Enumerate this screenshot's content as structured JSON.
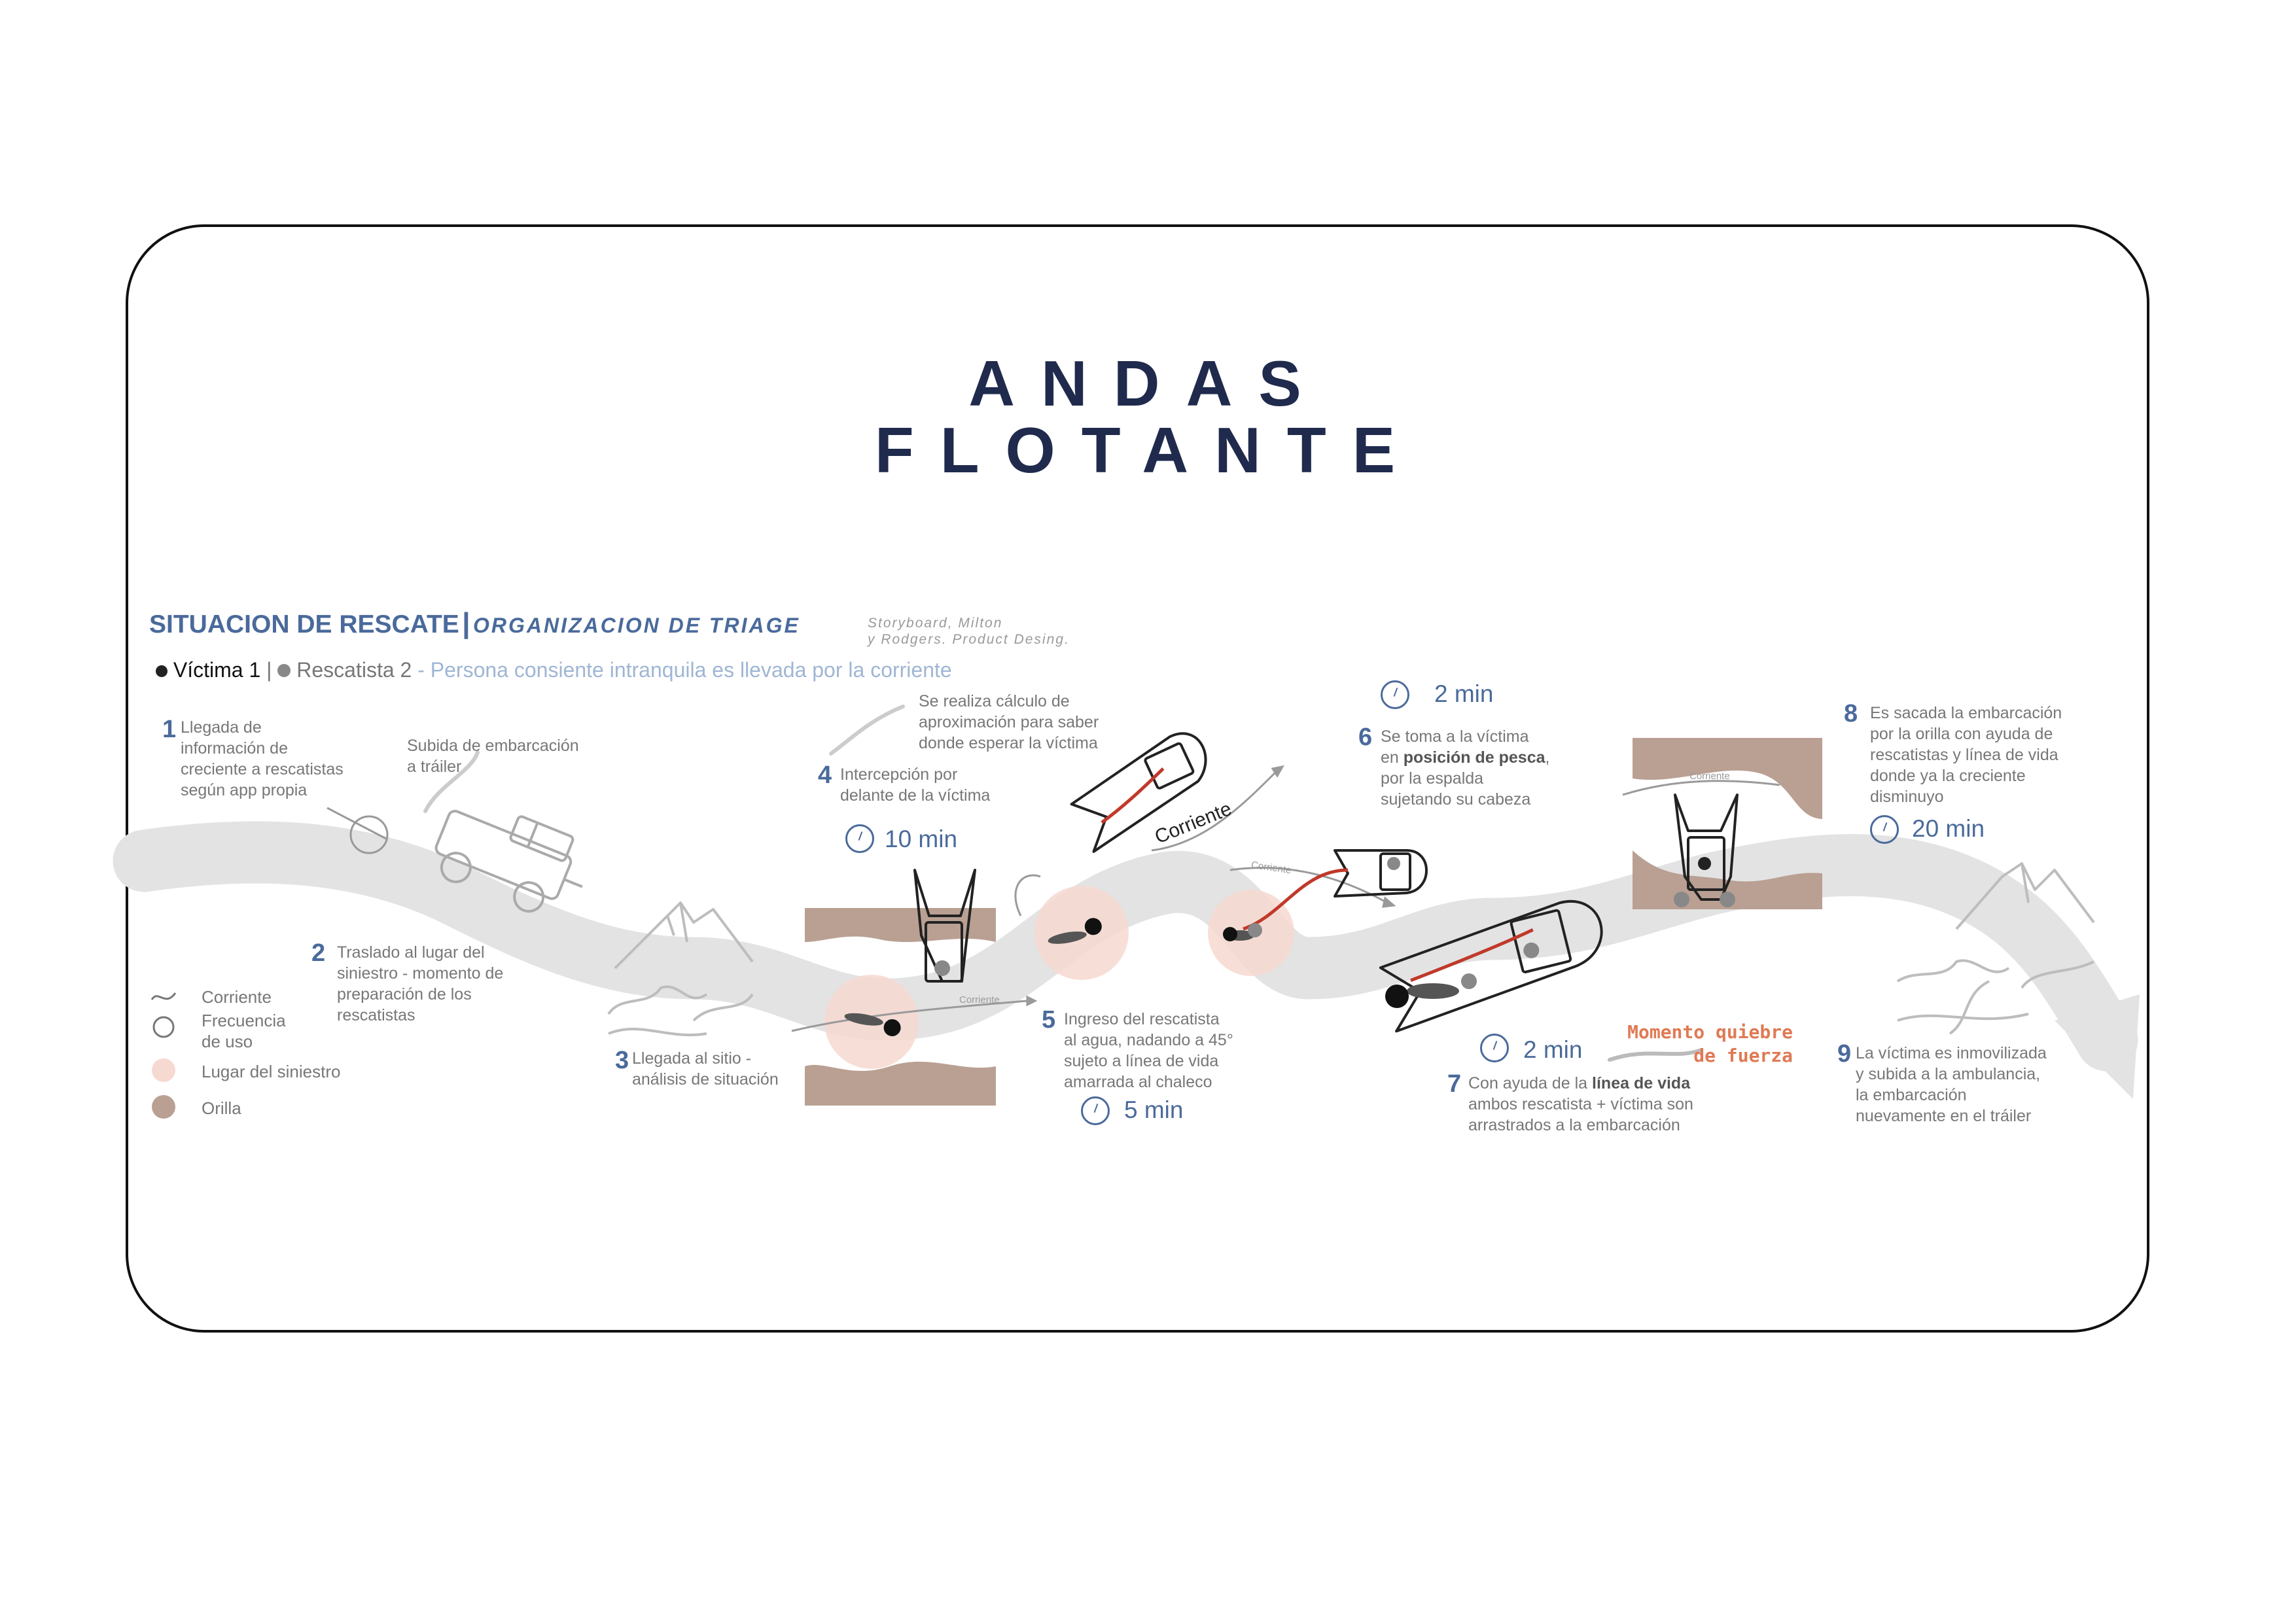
{
  "title": {
    "line1": "ANDAS",
    "line2": "FLOTANTE"
  },
  "header": {
    "main": "SITUACION DE RESCATE",
    "separator": "|",
    "sub": "ORGANIZACION DE TRIAGE",
    "credit_line1": "Storyboard, Milton",
    "credit_line2": "y Rodgers. Product Desing."
  },
  "actors": {
    "victim": "Víctima 1",
    "sep": "|",
    "rescuer": "Rescatista 2",
    "description": "- Persona consiente intranquila es llevada por la corriente"
  },
  "legend": {
    "current": "Corriente",
    "frequency_line1": "Frecuencia",
    "frequency_line2": "de uso",
    "site": "Lugar del siniestro",
    "shore": "Orilla"
  },
  "steps": [
    {
      "n": "1",
      "lines": [
        "Llegada de",
        "información de",
        "creciente a rescatistas",
        "según app propia"
      ]
    },
    {
      "n": "2",
      "lines": [
        "Traslado al lugar del",
        "siniestro - momento de",
        "preparación de los",
        "rescatistas"
      ]
    },
    {
      "n": "3",
      "lines": [
        "Llegada al sitio -",
        "análisis de situación"
      ]
    },
    {
      "n": "4",
      "lines": [
        "Intercepción por",
        "delante de la víctima"
      ]
    },
    {
      "n": "5",
      "lines": [
        "Ingreso del rescatista",
        "al agua, nadando a 45°",
        "sujeto a línea de vida",
        "amarrada al chaleco"
      ]
    },
    {
      "n": "6",
      "lines": [
        "Se toma a la víctima",
        "en ",
        "posición de pesca",
        ",",
        "por la espalda",
        "sujetando su cabeza"
      ]
    },
    {
      "n": "7",
      "lines": [
        "Con ayuda de la ",
        "línea de vida",
        "ambos rescatista + víctima son",
        "arrastrados a la embarcación"
      ]
    },
    {
      "n": "8",
      "lines": [
        "Es sacada la embarcación",
        "por la orilla con ayuda de",
        "rescatistas y línea de vida",
        "donde ya la creciente",
        "disminuyo"
      ]
    },
    {
      "n": "9",
      "lines": [
        "La víctima es inmovilizada",
        "y  subida a la ambulancia,",
        "la embarcación",
        "nuevamente en el tráiler"
      ]
    }
  ],
  "notes": {
    "trailer_line1": "Subida de embarcación",
    "trailer_line2": "a tráiler",
    "calc_line1": "Se realiza cálculo de",
    "calc_line2": "aproximación para saber",
    "calc_line3": "donde esperar la víctima"
  },
  "times": {
    "t4": "10 min",
    "t5": "5 min",
    "t6": "2 min",
    "t7": "2 min",
    "t8": "20 min"
  },
  "quiebre": {
    "line1": "Momento quiebre",
    "line2": "de fuerza"
  },
  "current_labels": {
    "big": "Corriente",
    "small": "Corriente"
  },
  "colors": {
    "title": "#1f2a4d",
    "accent": "#4a6a9b",
    "shore": "#b9a093",
    "site": "#f6d9d1",
    "river": "#e3e3e3",
    "line": "#c0392b"
  }
}
